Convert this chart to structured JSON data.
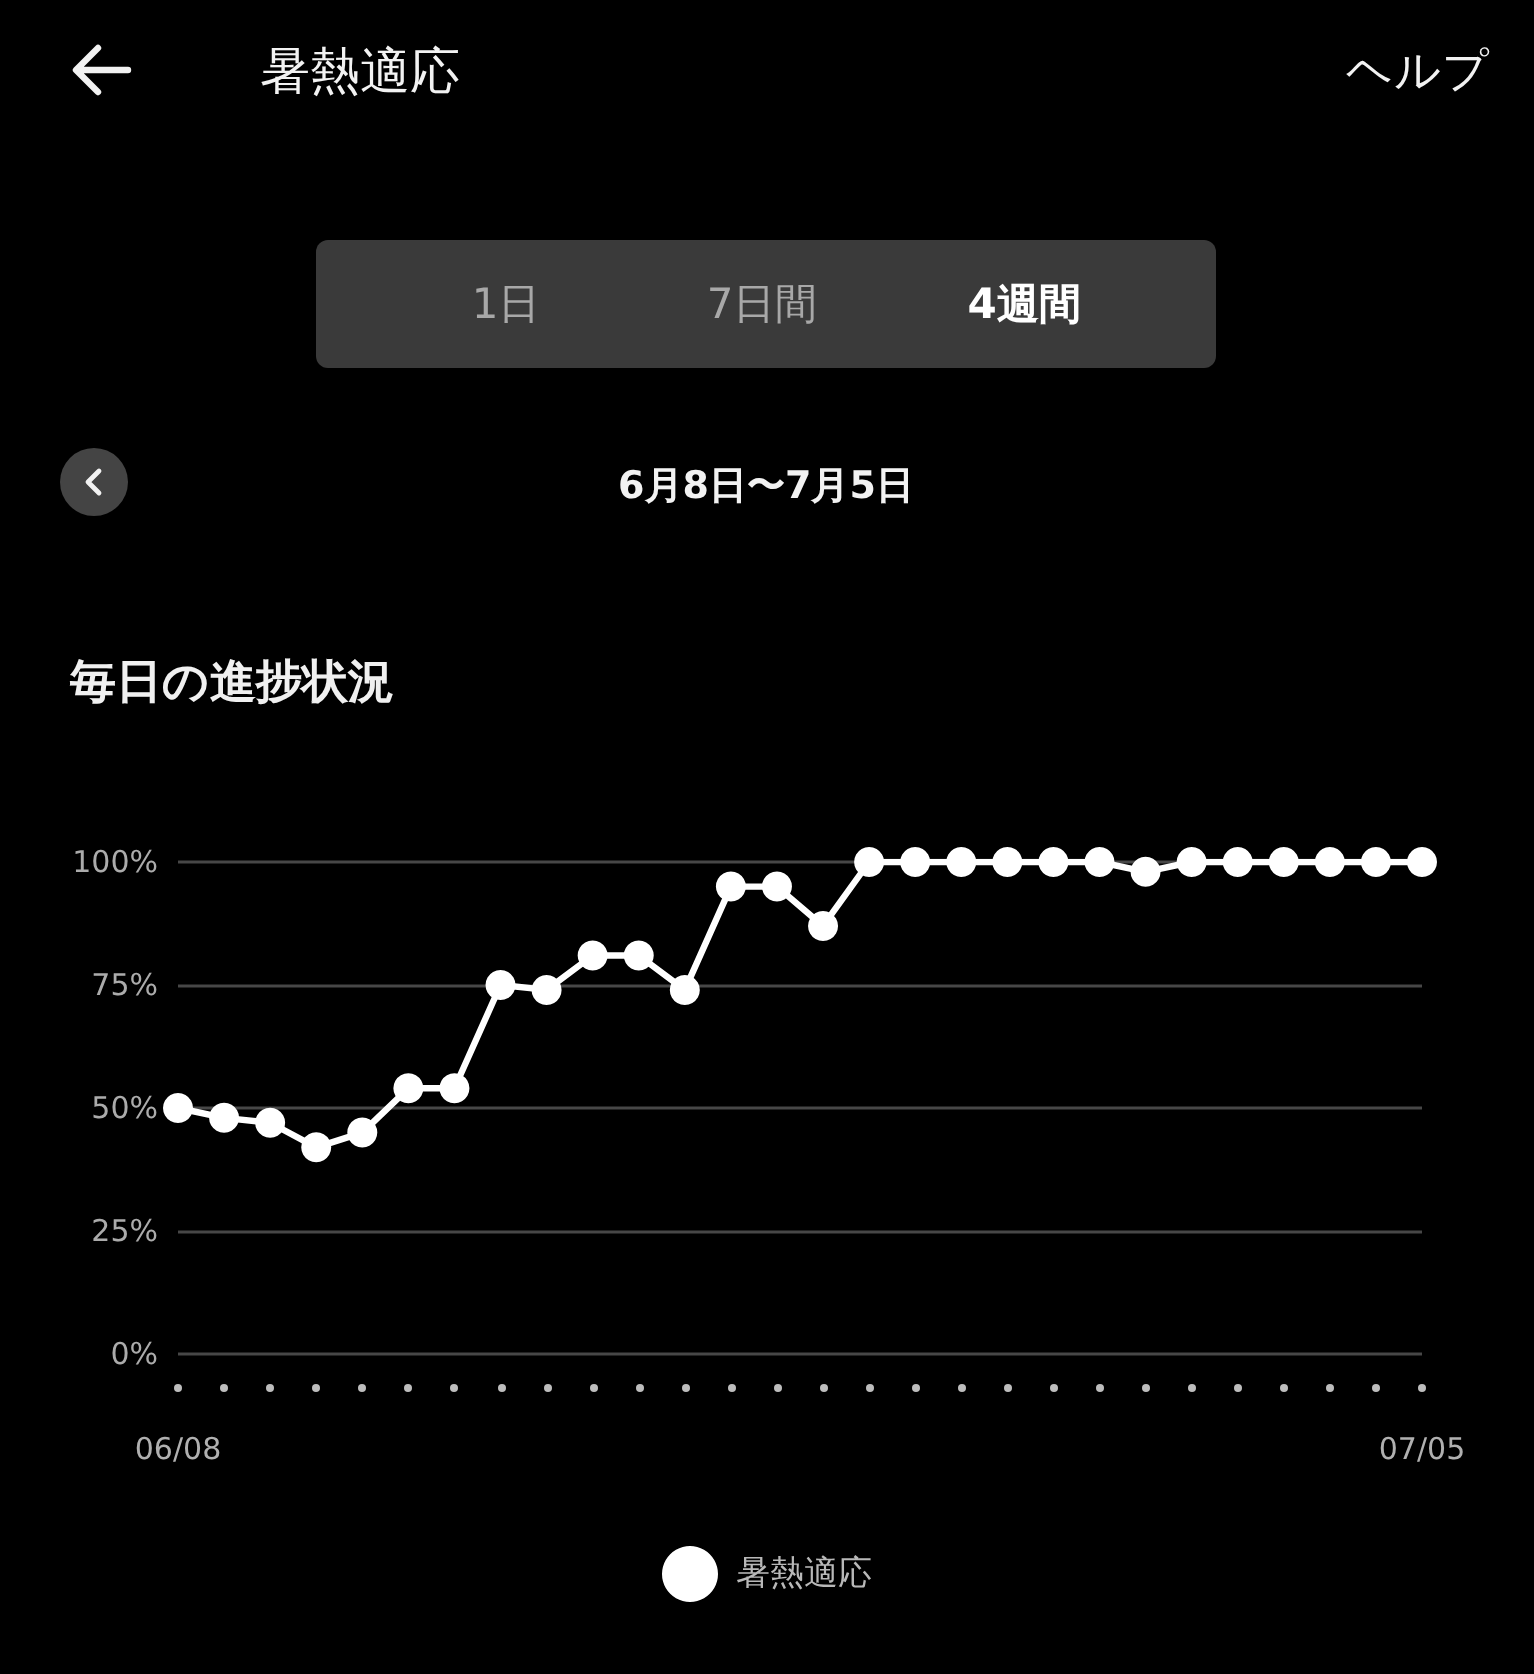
{
  "chart_data": {
    "type": "line",
    "title": "毎日の進捗状況",
    "annotations": [
      "暑熱適応",
      "ヘルプ",
      "1日",
      "7日間",
      "4週間",
      "6月8日〜7月5日"
    ],
    "categories": [
      "06/08",
      null,
      null,
      null,
      null,
      null,
      null,
      null,
      null,
      null,
      null,
      null,
      null,
      null,
      null,
      null,
      null,
      null,
      null,
      null,
      null,
      null,
      null,
      null,
      null,
      null,
      null,
      "07/05"
    ],
    "series": [
      {
        "name": "暑熱適応",
        "color": "#ffffff",
        "values": [
          50,
          48,
          47,
          42,
          45,
          54,
          54,
          75,
          74,
          81,
          81,
          74,
          95,
          95,
          87,
          100,
          100,
          100,
          100,
          100,
          100,
          98,
          100,
          100,
          100,
          100,
          100,
          100
        ]
      }
    ],
    "ylim": [
      0,
      100
    ],
    "yticks": [
      {
        "value": 0,
        "label": "0%"
      },
      {
        "value": 25,
        "label": "25%"
      },
      {
        "value": 50,
        "label": "50%"
      },
      {
        "value": 75,
        "label": "75%"
      },
      {
        "value": 100,
        "label": "100%"
      }
    ],
    "grid": "y",
    "legend": "bottom",
    "marker": "circle",
    "line_style": "solid"
  }
}
